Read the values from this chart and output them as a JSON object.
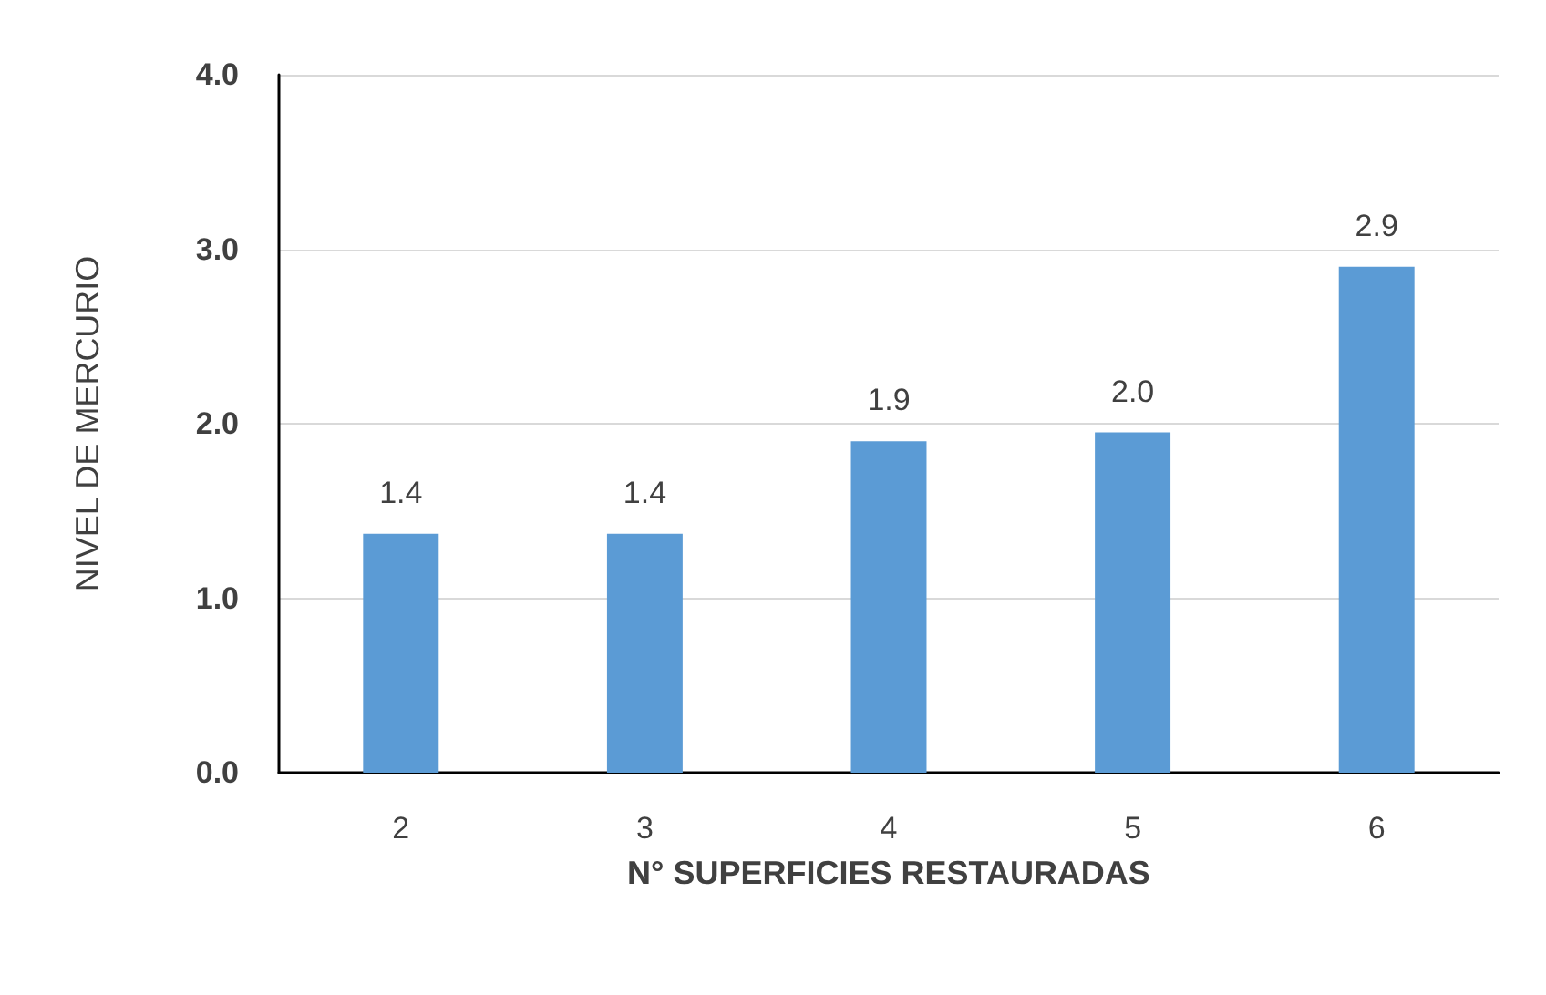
{
  "chart_data": {
    "type": "bar",
    "xlabel": "N° SUPERFICIES RESTAURADAS",
    "ylabel": "NIVEL DE MERCURIO",
    "categories": [
      "2",
      "3",
      "4",
      "5",
      "6"
    ],
    "values": [
      1.37,
      1.37,
      1.9,
      1.95,
      2.9
    ],
    "value_labels": [
      "1.4",
      "1.4",
      "1.9",
      "2.0",
      "2.9"
    ],
    "color": "#5b9bd5",
    "ylim": [
      0,
      4
    ],
    "yticks": [
      {
        "value": 0,
        "label": "0.0"
      },
      {
        "value": 1,
        "label": "1.0"
      },
      {
        "value": 2,
        "label": "2.0"
      },
      {
        "value": 3,
        "label": "3.0"
      },
      {
        "value": 4,
        "label": "4.0"
      }
    ],
    "grid": "y"
  }
}
